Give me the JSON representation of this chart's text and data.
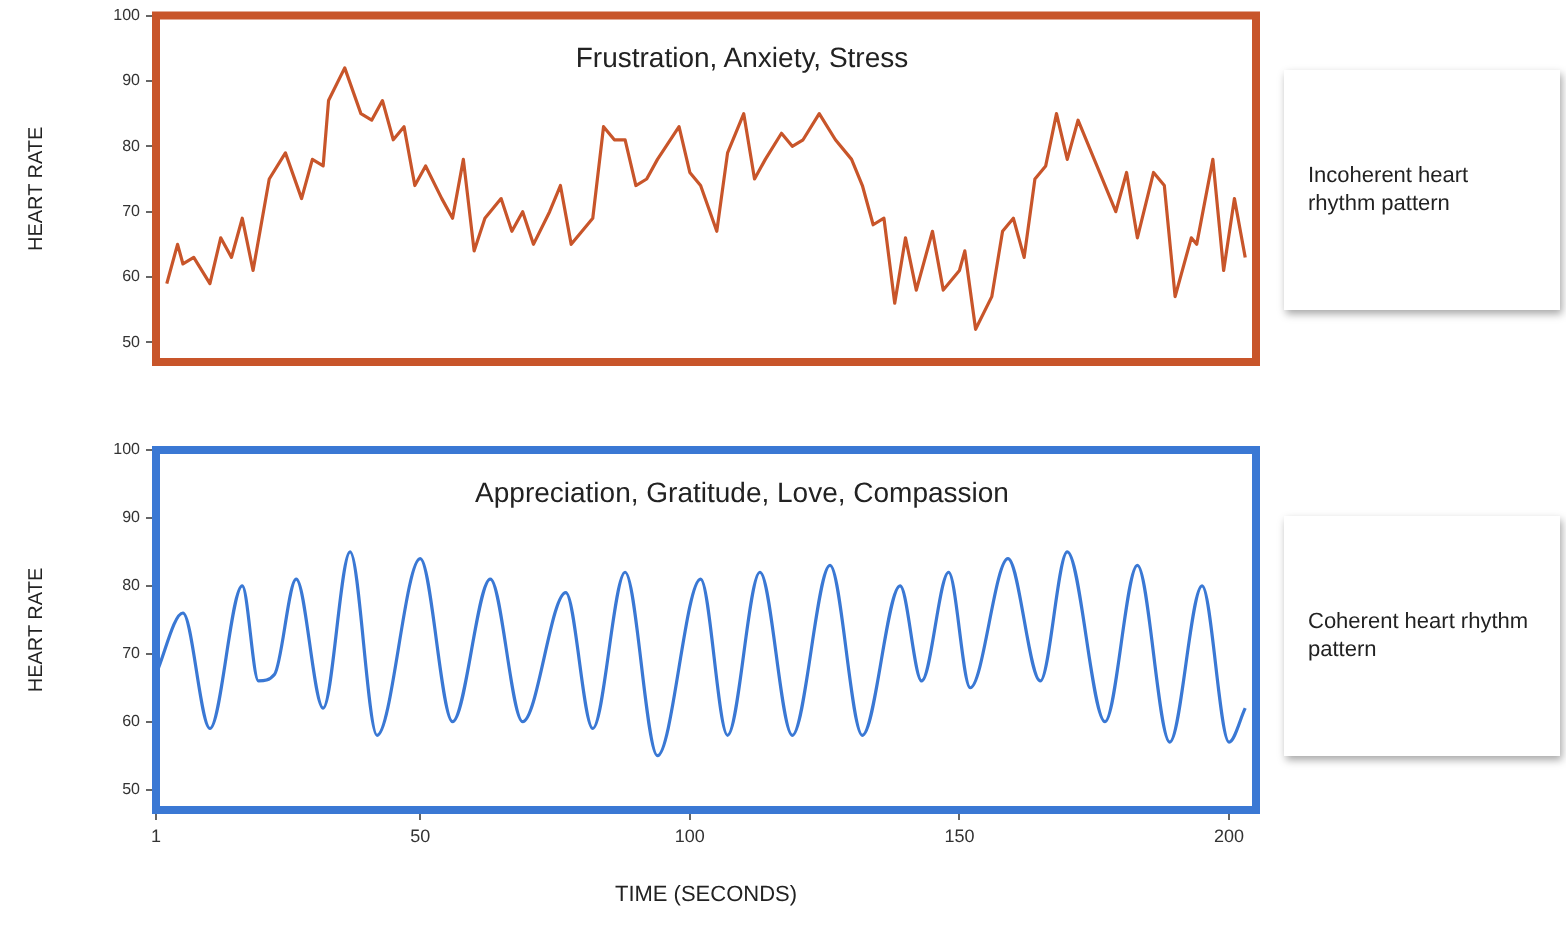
{
  "chart_data": [
    {
      "type": "line",
      "title": "Frustration, Anxiety, Stress",
      "ylabel": "HEART RATE",
      "xlim": [
        1,
        205
      ],
      "ylim": [
        47,
        100
      ],
      "yticks": [
        50,
        60,
        70,
        80,
        90,
        100
      ],
      "tick_labels": "y",
      "marker": "none",
      "line_style": "solid",
      "annotations": [
        "Incoherent heart rhythm pattern"
      ],
      "x": [
        3,
        5,
        6,
        8,
        11,
        13,
        15,
        17,
        19,
        22,
        25,
        28,
        30,
        32,
        33,
        36,
        39,
        41,
        43,
        45,
        47,
        49,
        51,
        54,
        56,
        58,
        60,
        62,
        65,
        67,
        69,
        71,
        74,
        76,
        78,
        82,
        84,
        86,
        88,
        90,
        92,
        94,
        98,
        100,
        102,
        105,
        107,
        110,
        112,
        114,
        117,
        119,
        121,
        124,
        127,
        130,
        132,
        134,
        136,
        138,
        140,
        142,
        145,
        147,
        150,
        151,
        153,
        156,
        158,
        160,
        162,
        164,
        166,
        168,
        170,
        172,
        175,
        176,
        179,
        181,
        183,
        186,
        188,
        190,
        193,
        194,
        197,
        199,
        201,
        203
      ],
      "series": [
        {
          "color": "#c8552a",
          "values": [
            59,
            65,
            62,
            63,
            59,
            66,
            63,
            69,
            61,
            75,
            79,
            72,
            78,
            77,
            87,
            92,
            85,
            84,
            87,
            81,
            83,
            74,
            77,
            72,
            69,
            78,
            64,
            69,
            72,
            67,
            70,
            65,
            70,
            74,
            65,
            69,
            83,
            81,
            81,
            74,
            75,
            78,
            83,
            76,
            74,
            67,
            79,
            85,
            75,
            78,
            82,
            80,
            81,
            85,
            81,
            78,
            74,
            68,
            69,
            56,
            66,
            58,
            67,
            58,
            61,
            64,
            52,
            57,
            67,
            69,
            63,
            75,
            77,
            85,
            78,
            84,
            78,
            76,
            70,
            76,
            66,
            76,
            74,
            57,
            66,
            65,
            78,
            61,
            72,
            63
          ]
        }
      ]
    },
    {
      "type": "line",
      "title": "Appreciation, Gratitude, Love, Compassion",
      "xlabel": "TIME (SECONDS)",
      "ylabel": "HEART RATE",
      "xlim": [
        1,
        205
      ],
      "ylim": [
        47,
        100
      ],
      "xticks": [
        1,
        50,
        100,
        150,
        200
      ],
      "yticks": [
        50,
        60,
        70,
        80,
        90,
        100
      ],
      "marker": "none",
      "line_style": "solid",
      "annotations": [
        "Coherent heart rhythm pattern"
      ],
      "x": [
        1,
        6,
        11,
        17,
        20,
        23,
        27,
        32,
        37,
        42,
        50,
        56,
        63,
        69,
        77,
        82,
        88,
        94,
        102,
        107,
        113,
        119,
        126,
        132,
        139,
        143,
        148,
        152,
        159,
        165,
        170,
        177,
        183,
        189,
        195,
        200,
        203
      ],
      "series": [
        {
          "color": "#3a78d4",
          "values": [
            67,
            76,
            59,
            80,
            66,
            67,
            81,
            62,
            85,
            58,
            84,
            60,
            81,
            60,
            79,
            59,
            82,
            55,
            81,
            58,
            82,
            58,
            83,
            58,
            80,
            66,
            82,
            65,
            84,
            66,
            85,
            60,
            83,
            57,
            80,
            57,
            62
          ]
        }
      ]
    }
  ]
}
